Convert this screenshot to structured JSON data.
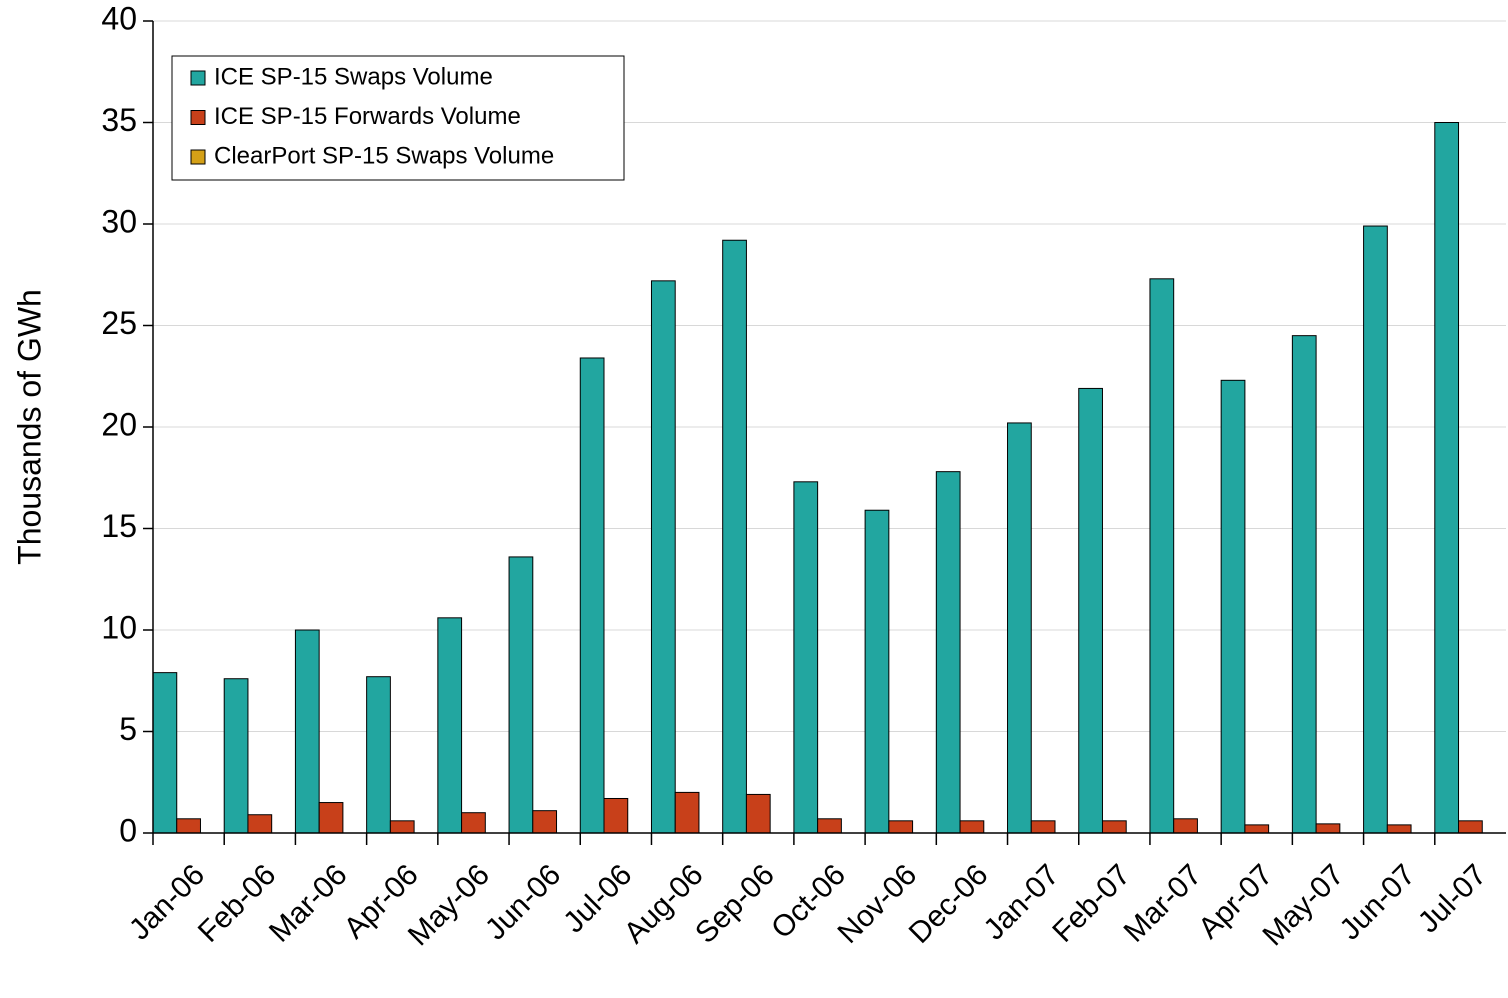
{
  "chart_data": {
    "type": "bar",
    "y_label": "Thousands of GWh",
    "categories": [
      "Jan-06",
      "Feb-06",
      "Mar-06",
      "Apr-06",
      "May-06",
      "Jun-06",
      "Jul-06",
      "Aug-06",
      "Sep-06",
      "Oct-06",
      "Nov-06",
      "Dec-06",
      "Jan-07",
      "Feb-07",
      "Mar-07",
      "Apr-07",
      "May-07",
      "Jun-07",
      "Jul-07"
    ],
    "series": [
      {
        "name": "ICE SP-15 Swaps Volume",
        "color": "#22a6a0",
        "values": [
          7.9,
          7.6,
          10.0,
          7.7,
          10.6,
          13.6,
          23.4,
          27.2,
          29.2,
          17.3,
          15.9,
          17.8,
          20.2,
          21.9,
          27.3,
          22.3,
          24.5,
          29.9,
          35.0
        ]
      },
      {
        "name": "ICE SP-15 Forwards Volume",
        "color": "#c8401a",
        "values": [
          0.7,
          0.9,
          1.5,
          0.6,
          1.0,
          1.1,
          1.7,
          2.0,
          1.9,
          0.7,
          0.6,
          0.6,
          0.6,
          0.6,
          0.7,
          0.4,
          0.45,
          0.4,
          0.6
        ]
      },
      {
        "name": "ClearPort SP-15 Swaps Volume",
        "color": "#d4a017",
        "values": [
          0,
          0,
          0,
          0,
          0,
          0,
          0,
          0,
          0,
          0,
          0,
          0,
          0,
          0,
          0,
          0,
          0,
          0,
          0
        ]
      }
    ],
    "ylim": [
      0,
      40
    ],
    "yticks": [
      0,
      5,
      10,
      15,
      20,
      25,
      30,
      35,
      40
    ],
    "grid": true,
    "legend": "upper left"
  }
}
